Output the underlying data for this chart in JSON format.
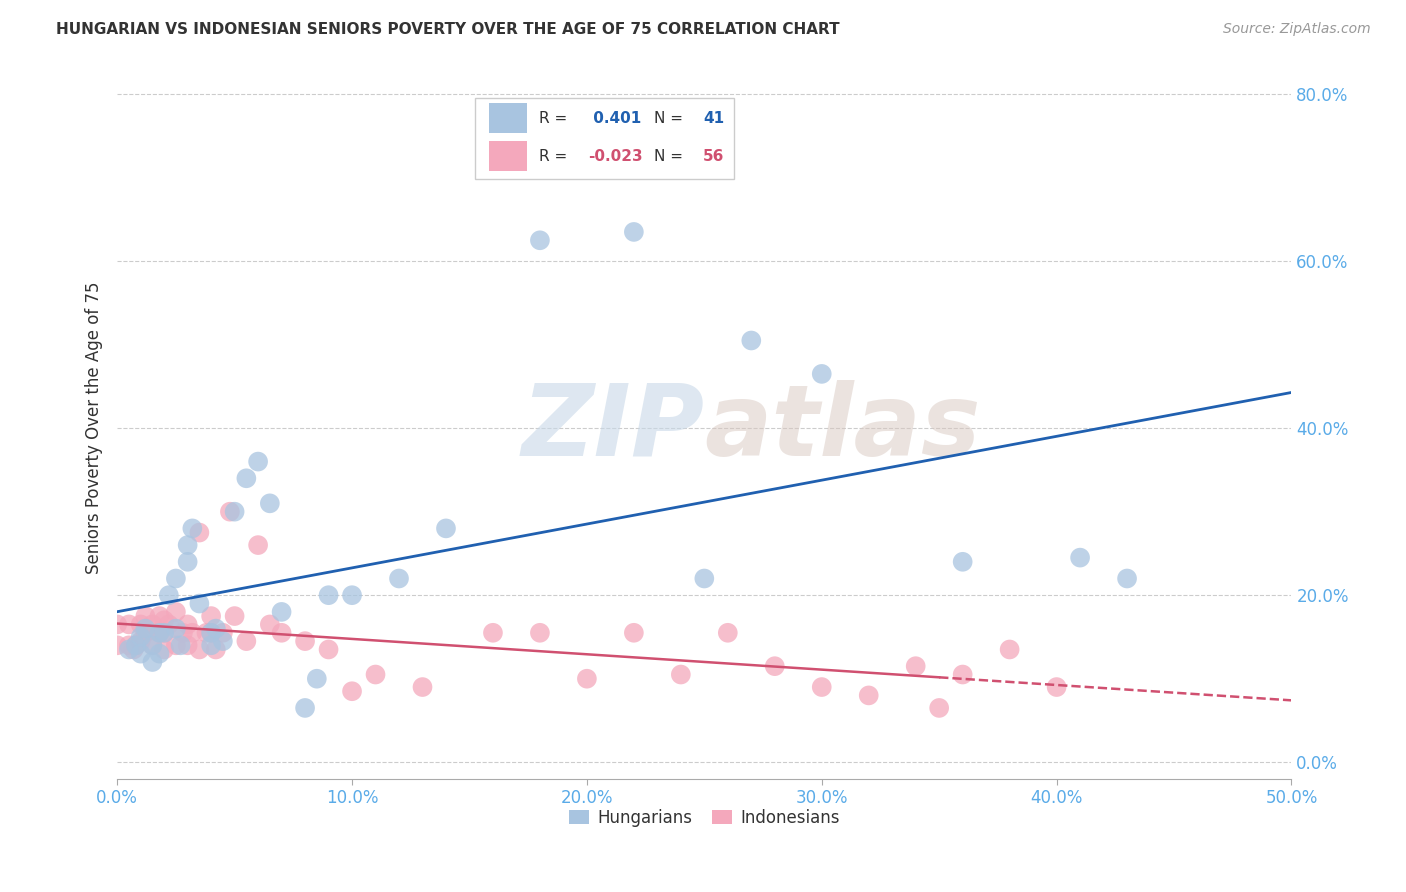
{
  "title": "HUNGARIAN VS INDONESIAN SENIORS POVERTY OVER THE AGE OF 75 CORRELATION CHART",
  "source": "Source: ZipAtlas.com",
  "ylabel": "Seniors Poverty Over the Age of 75",
  "xlim": [
    0.0,
    0.5
  ],
  "ylim": [
    -0.02,
    0.82
  ],
  "xticks": [
    0.0,
    0.1,
    0.2,
    0.3,
    0.4,
    0.5
  ],
  "yticks": [
    0.0,
    0.2,
    0.4,
    0.6,
    0.8
  ],
  "xticklabels": [
    "0.0%",
    "10.0%",
    "20.0%",
    "30.0%",
    "40.0%",
    "50.0%"
  ],
  "yticklabels": [
    "0.0%",
    "20.0%",
    "40.0%",
    "60.0%",
    "80.0%"
  ],
  "hungarian_color": "#a8c4e0",
  "indonesian_color": "#f4a8bc",
  "hungarian_line_color": "#2060b0",
  "indonesian_line_color": "#d05070",
  "R_hungarian": 0.401,
  "N_hungarian": 41,
  "R_indonesian": -0.023,
  "N_indonesian": 56,
  "watermark_zip": "ZIP",
  "watermark_atlas": "atlas",
  "background_color": "#ffffff",
  "grid_color": "#cccccc",
  "hungarian_x": [
    0.005,
    0.008,
    0.01,
    0.01,
    0.012,
    0.015,
    0.015,
    0.018,
    0.018,
    0.02,
    0.022,
    0.025,
    0.025,
    0.027,
    0.03,
    0.03,
    0.032,
    0.035,
    0.04,
    0.04,
    0.042,
    0.045,
    0.05,
    0.055,
    0.06,
    0.065,
    0.07,
    0.08,
    0.085,
    0.09,
    0.1,
    0.12,
    0.14,
    0.18,
    0.22,
    0.25,
    0.27,
    0.3,
    0.36,
    0.41,
    0.43
  ],
  "hungarian_y": [
    0.135,
    0.14,
    0.15,
    0.13,
    0.16,
    0.14,
    0.12,
    0.155,
    0.13,
    0.155,
    0.2,
    0.22,
    0.16,
    0.14,
    0.24,
    0.26,
    0.28,
    0.19,
    0.155,
    0.14,
    0.16,
    0.145,
    0.3,
    0.34,
    0.36,
    0.31,
    0.18,
    0.065,
    0.1,
    0.2,
    0.2,
    0.22,
    0.28,
    0.625,
    0.635,
    0.22,
    0.505,
    0.465,
    0.24,
    0.245,
    0.22
  ],
  "indonesian_x": [
    0.0,
    0.0,
    0.005,
    0.005,
    0.007,
    0.008,
    0.01,
    0.01,
    0.012,
    0.012,
    0.015,
    0.015,
    0.018,
    0.018,
    0.02,
    0.02,
    0.02,
    0.022,
    0.025,
    0.025,
    0.028,
    0.03,
    0.03,
    0.032,
    0.035,
    0.035,
    0.038,
    0.04,
    0.04,
    0.042,
    0.045,
    0.048,
    0.05,
    0.055,
    0.06,
    0.065,
    0.07,
    0.08,
    0.09,
    0.1,
    0.11,
    0.13,
    0.16,
    0.18,
    0.2,
    0.22,
    0.24,
    0.26,
    0.28,
    0.3,
    0.32,
    0.34,
    0.35,
    0.36,
    0.38,
    0.4
  ],
  "indonesian_y": [
    0.14,
    0.165,
    0.14,
    0.165,
    0.135,
    0.14,
    0.165,
    0.145,
    0.175,
    0.155,
    0.14,
    0.165,
    0.155,
    0.175,
    0.135,
    0.155,
    0.17,
    0.165,
    0.14,
    0.18,
    0.155,
    0.14,
    0.165,
    0.155,
    0.275,
    0.135,
    0.155,
    0.155,
    0.175,
    0.135,
    0.155,
    0.3,
    0.175,
    0.145,
    0.26,
    0.165,
    0.155,
    0.145,
    0.135,
    0.085,
    0.105,
    0.09,
    0.155,
    0.155,
    0.1,
    0.155,
    0.105,
    0.155,
    0.115,
    0.09,
    0.08,
    0.115,
    0.065,
    0.105,
    0.135,
    0.09
  ]
}
